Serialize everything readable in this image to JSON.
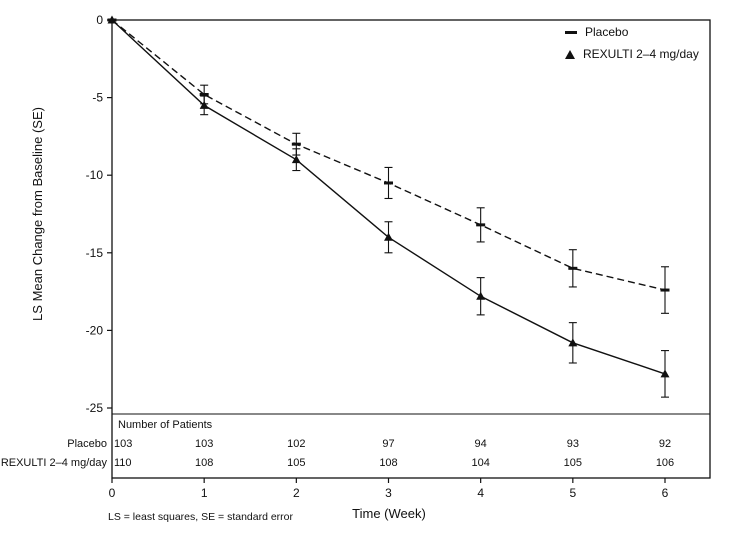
{
  "chart_data": {
    "type": "line",
    "title": "",
    "xlabel": "Time (Week)",
    "ylabel": "LS Mean Change from Baseline (SE)",
    "x": [
      0,
      1,
      2,
      3,
      4,
      5,
      6
    ],
    "xlim": [
      0,
      6
    ],
    "ylim": [
      -25,
      0
    ],
    "yticks": [
      0,
      -5,
      -10,
      -15,
      -20,
      -25
    ],
    "grid": false,
    "error_bars": true,
    "series": [
      {
        "name": "Placebo",
        "line": "dashed",
        "marker": "dash",
        "values": [
          0,
          -4.8,
          -8.0,
          -10.5,
          -13.2,
          -16.0,
          -17.4
        ],
        "se": [
          0,
          0.6,
          0.7,
          1.0,
          1.1,
          1.2,
          1.5
        ]
      },
      {
        "name": "REXULTI 2–4 mg/day",
        "line": "solid",
        "marker": "triangle",
        "values": [
          0,
          -5.5,
          -9.0,
          -14.0,
          -17.8,
          -20.8,
          -22.8
        ],
        "se": [
          0,
          0.6,
          0.7,
          1.0,
          1.2,
          1.3,
          1.5
        ]
      }
    ],
    "legend": {
      "position": "top-right",
      "entries": [
        "Placebo",
        "REXULTI 2–4 mg/day"
      ]
    },
    "patients_table": {
      "header": "Number of Patients",
      "rows": [
        {
          "label": "Placebo",
          "values": [
            103,
            103,
            102,
            97,
            94,
            93,
            92
          ]
        },
        {
          "label": "REXULTI 2–4 mg/day",
          "values": [
            110,
            108,
            105,
            108,
            104,
            105,
            106
          ]
        }
      ]
    },
    "footnote": "LS = least squares, SE = standard error"
  },
  "colors": {
    "ink": "#111111",
    "background": "#ffffff"
  }
}
